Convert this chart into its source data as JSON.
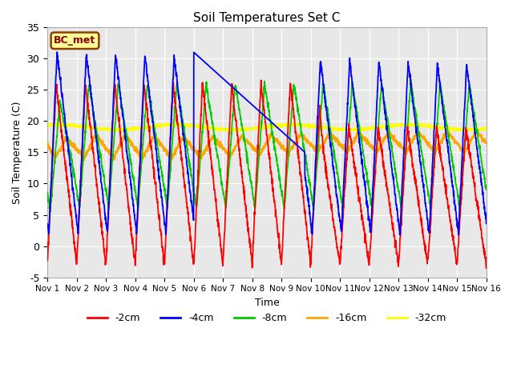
{
  "title": "Soil Temperatures Set C",
  "xlabel": "Time",
  "ylabel": "Soil Temperature (C)",
  "ylim": [
    -5,
    35
  ],
  "xlim": [
    0,
    15
  ],
  "annotation": "BC_met",
  "annotation_color": "#8B0000",
  "annotation_bg": "#FFFF99",
  "annotation_border": "#8B4000",
  "plot_bg": "#e8e8e8",
  "grid_color": "white",
  "legend_labels": [
    "-2cm",
    "-4cm",
    "-8cm",
    "-16cm",
    "-32cm"
  ],
  "series_colors": [
    "red",
    "blue",
    "#00cc00",
    "orange",
    "yellow"
  ],
  "xtick_labels": [
    "Nov 1",
    "Nov 2",
    "Nov 3",
    "Nov 4",
    "Nov 5",
    "Nov 6",
    "Nov 7",
    "Nov 8",
    "Nov 9",
    "Nov 10",
    "Nov 11",
    "Nov 12",
    "Nov 13",
    "Nov 14",
    "Nov 15",
    "Nov 16"
  ],
  "ytick_values": [
    -5,
    0,
    5,
    10,
    15,
    20,
    25,
    30,
    35
  ],
  "n_points": 2000
}
